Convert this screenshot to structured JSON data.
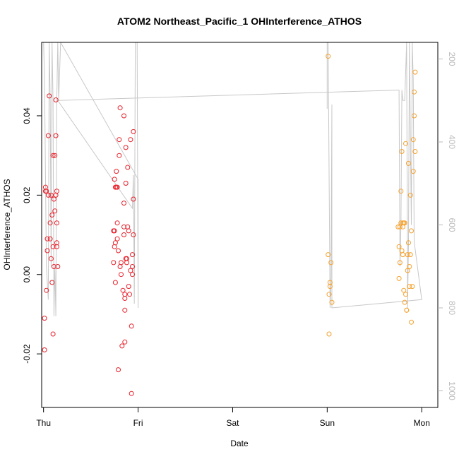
{
  "chart_data": {
    "type": "scatter",
    "title": "ATOM2 Northeast_Pacific_1 OHInterference_ATHOS",
    "xlabel": "Date",
    "ylabel": "OHInterference_ATHOS",
    "xlim": [
      -0.02,
      4.17
    ],
    "ylim": [
      -0.0335,
      0.0585
    ],
    "x_ticks": [
      {
        "value": 0,
        "label": "Thu"
      },
      {
        "value": 1,
        "label": "Fri"
      },
      {
        "value": 2,
        "label": "Sat"
      },
      {
        "value": 3,
        "label": "Sun"
      },
      {
        "value": 4,
        "label": "Mon"
      }
    ],
    "y_ticks": [
      {
        "value": -0.02,
        "label": "-0.02"
      },
      {
        "value": 0.0,
        "label": "0.00"
      },
      {
        "value": 0.02,
        "label": "0.02"
      },
      {
        "value": 0.04,
        "label": "0.04"
      }
    ],
    "y2_lim": [
      160,
      1040
    ],
    "y2_ticks": [
      {
        "value": 200,
        "label": "200"
      },
      {
        "value": 400,
        "label": "400"
      },
      {
        "value": 600,
        "label": "600"
      },
      {
        "value": 800,
        "label": "800"
      },
      {
        "value": 1000,
        "label": "1000"
      }
    ],
    "grid": false,
    "colors": {
      "series_red": "#e8202a",
      "series_orange": "#f5a02a",
      "altitude_line": "#c8c8c8"
    },
    "series": [
      {
        "color": "#e8202a",
        "points": [
          [
            0.01,
            -0.011
          ],
          [
            0.01,
            -0.019
          ],
          [
            0.02,
            0.022
          ],
          [
            0.02,
            0.021
          ],
          [
            0.03,
            0.021
          ],
          [
            0.03,
            -0.004
          ],
          [
            0.04,
            0.009
          ],
          [
            0.04,
            0.006
          ],
          [
            0.05,
            0.035
          ],
          [
            0.05,
            0.02
          ],
          [
            0.06,
            0.045
          ],
          [
            0.07,
            0.013
          ],
          [
            0.07,
            0.009
          ],
          [
            0.08,
            0.004
          ],
          [
            0.08,
            0.02
          ],
          [
            0.09,
            -0.002
          ],
          [
            0.09,
            0.015
          ],
          [
            0.1,
            -0.015
          ],
          [
            0.1,
            0.007
          ],
          [
            0.1,
            0.03
          ],
          [
            0.11,
            0.019
          ],
          [
            0.11,
            0.002
          ],
          [
            0.12,
            0.03
          ],
          [
            0.12,
            0.016
          ],
          [
            0.13,
            0.02
          ],
          [
            0.13,
            0.035
          ],
          [
            0.13,
            0.044
          ],
          [
            0.14,
            0.021
          ],
          [
            0.14,
            0.013
          ],
          [
            0.14,
            0.008
          ],
          [
            0.14,
            0.007
          ],
          [
            0.15,
            0.002
          ],
          [
            0.74,
            0.003
          ],
          [
            0.74,
            0.011
          ],
          [
            0.75,
            0.007
          ],
          [
            0.75,
            0.024
          ],
          [
            0.75,
            0.011
          ],
          [
            0.76,
            0.022
          ],
          [
            0.76,
            -0.002
          ],
          [
            0.76,
            0.008
          ],
          [
            0.77,
            0.026
          ],
          [
            0.77,
            0.022
          ],
          [
            0.78,
            0.022
          ],
          [
            0.78,
            0.013
          ],
          [
            0.78,
            0.009
          ],
          [
            0.79,
            0.006
          ],
          [
            0.79,
            -0.024
          ],
          [
            0.8,
            0.034
          ],
          [
            0.8,
            0.03
          ],
          [
            0.81,
            0.042
          ],
          [
            0.81,
            0.002
          ],
          [
            0.82,
            0.003
          ],
          [
            0.82,
            0.0
          ],
          [
            0.83,
            -0.018
          ],
          [
            0.84,
            -0.004
          ],
          [
            0.85,
            0.01
          ],
          [
            0.85,
            0.018
          ],
          [
            0.85,
            0.012
          ],
          [
            0.85,
            0.04
          ],
          [
            0.86,
            -0.005
          ],
          [
            0.86,
            -0.009
          ],
          [
            0.86,
            -0.017
          ],
          [
            0.86,
            -0.006
          ],
          [
            0.87,
            0.023
          ],
          [
            0.87,
            0.032
          ],
          [
            0.87,
            0.004
          ],
          [
            0.88,
            0.003
          ],
          [
            0.88,
            0.004
          ],
          [
            0.89,
            0.012
          ],
          [
            0.89,
            0.027
          ],
          [
            0.9,
            -0.003
          ],
          [
            0.9,
            0.011
          ],
          [
            0.91,
            -0.005
          ],
          [
            0.92,
            0.001
          ],
          [
            0.92,
            0.034
          ],
          [
            0.93,
            -0.013
          ],
          [
            0.93,
            -0.03
          ],
          [
            0.94,
            0.0
          ],
          [
            0.94,
            0.002
          ],
          [
            0.94,
            0.005
          ],
          [
            0.95,
            0.036
          ],
          [
            0.95,
            0.019
          ],
          [
            0.95,
            0.01
          ]
        ]
      },
      {
        "color": "#f5a02a",
        "points": [
          [
            3.01,
            0.055
          ],
          [
            3.01,
            0.005
          ],
          [
            3.02,
            -0.015
          ],
          [
            3.02,
            -0.005
          ],
          [
            3.03,
            -0.002
          ],
          [
            3.03,
            -0.003
          ],
          [
            3.04,
            0.003
          ],
          [
            3.05,
            -0.007
          ],
          [
            3.75,
            0.012
          ],
          [
            3.76,
            -0.001
          ],
          [
            3.76,
            0.007
          ],
          [
            3.77,
            0.012
          ],
          [
            3.77,
            0.003
          ],
          [
            3.78,
            0.021
          ],
          [
            3.78,
            0.013
          ],
          [
            3.79,
            0.006
          ],
          [
            3.79,
            0.031
          ],
          [
            3.8,
            0.012
          ],
          [
            3.8,
            0.013
          ],
          [
            3.8,
            0.005
          ],
          [
            3.81,
            0.013
          ],
          [
            3.81,
            -0.004
          ],
          [
            3.82,
            -0.007
          ],
          [
            3.82,
            0.013
          ],
          [
            3.83,
            0.033
          ],
          [
            3.83,
            -0.005
          ],
          [
            3.84,
            -0.009
          ],
          [
            3.84,
            -0.009
          ],
          [
            3.85,
            0.005
          ],
          [
            3.85,
            0.001
          ],
          [
            3.86,
            0.028
          ],
          [
            3.86,
            0.008
          ],
          [
            3.87,
            -0.003
          ],
          [
            3.87,
            0.002
          ],
          [
            3.88,
            0.005
          ],
          [
            3.88,
            0.02
          ],
          [
            3.89,
            -0.012
          ],
          [
            3.89,
            0.011
          ],
          [
            3.9,
            -0.003
          ],
          [
            3.91,
            0.026
          ],
          [
            3.91,
            0.034
          ],
          [
            3.92,
            0.046
          ],
          [
            3.92,
            0.04
          ],
          [
            3.93,
            0.031
          ],
          [
            3.93,
            0.051
          ]
        ]
      }
    ]
  }
}
